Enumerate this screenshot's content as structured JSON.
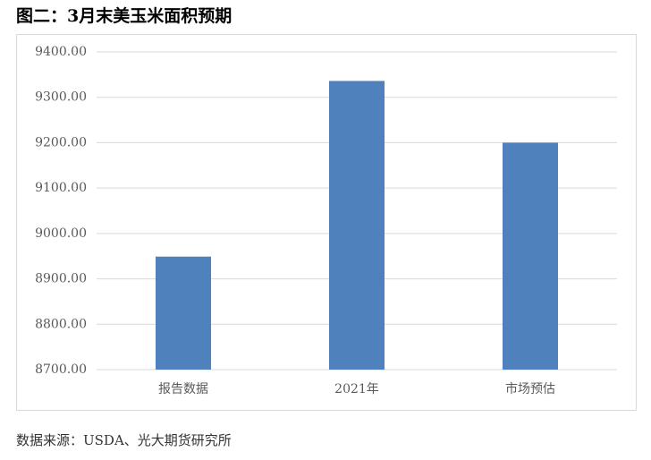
{
  "chart_data": {
    "type": "bar",
    "title": "图二：3月末美玉米面积预期",
    "categories": [
      "报告数据",
      "2021年",
      "市场预估"
    ],
    "values": [
      8949,
      9336,
      9200
    ],
    "color": "#4f81bd",
    "ylim": [
      8700,
      9400
    ],
    "yticks": [
      {
        "value": 8700,
        "label": "8700.00"
      },
      {
        "value": 8800,
        "label": "8800.00"
      },
      {
        "value": 8900,
        "label": "8900.00"
      },
      {
        "value": 9000,
        "label": "9000.00"
      },
      {
        "value": 9100,
        "label": "9100.00"
      },
      {
        "value": 9200,
        "label": "9200.00"
      },
      {
        "value": 9300,
        "label": "9300.00"
      },
      {
        "value": 9400,
        "label": "9400.00"
      }
    ],
    "grid": true,
    "source": "数据来源：USDA、光大期货研究所"
  }
}
